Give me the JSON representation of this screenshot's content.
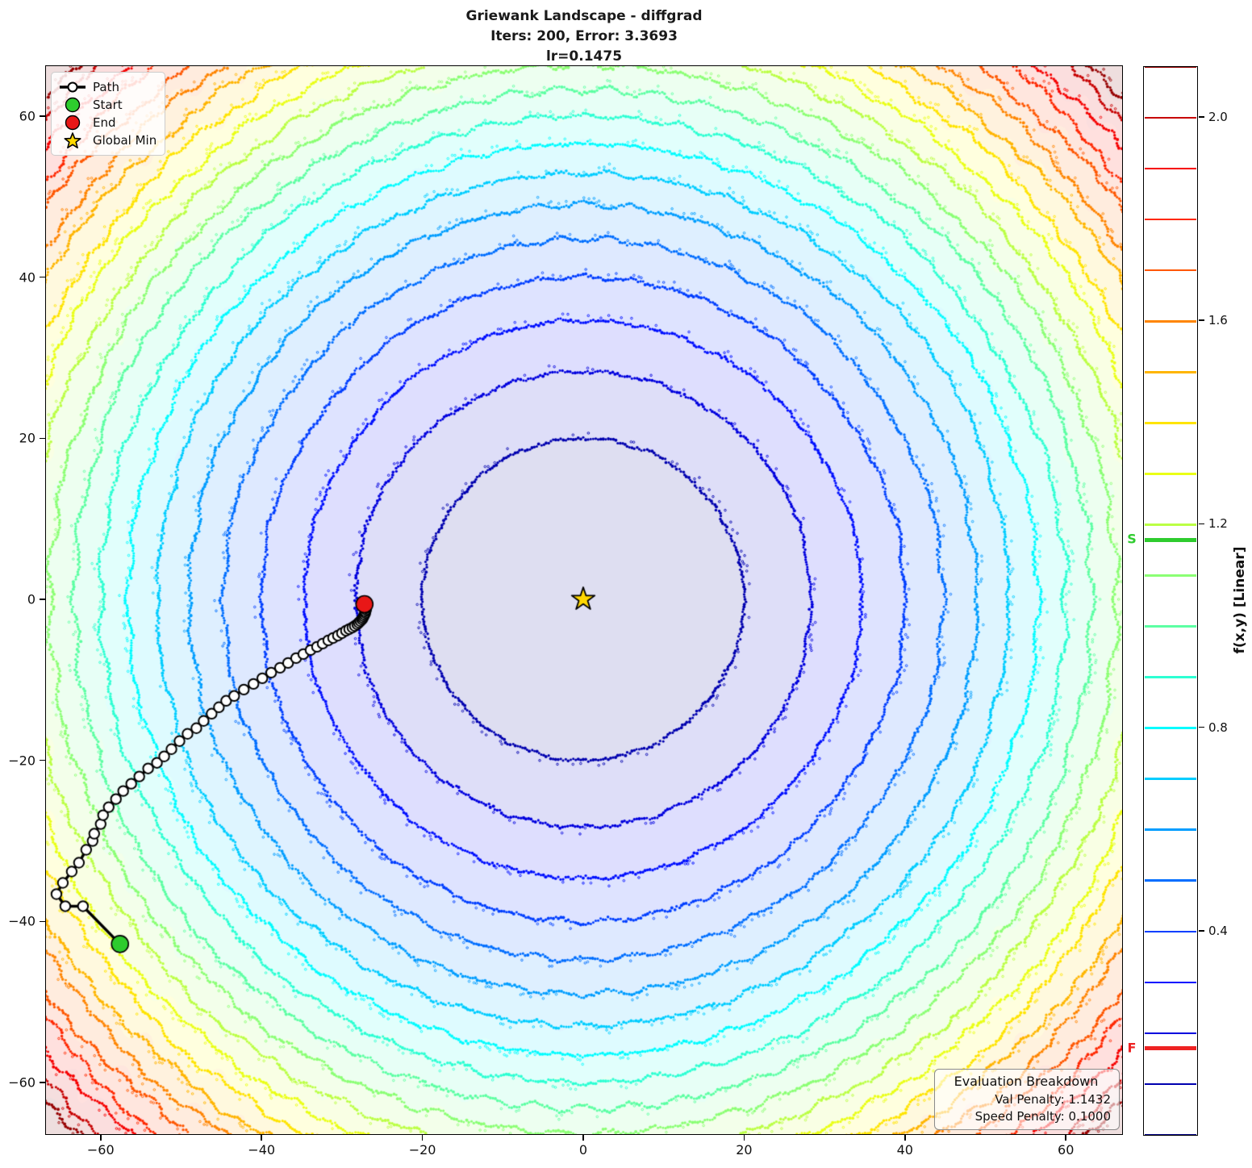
{
  "title": {
    "line1": "Griewank Landscape - diffgrad",
    "line2": "Iters: 200, Error: 3.3693",
    "line3": "lr=0.1475"
  },
  "legend": {
    "path_label": "Path",
    "start_label": "Start",
    "end_label": "End",
    "global_min_label": "Global Min",
    "path_color": "#000000",
    "path_marker_fill": "#ffffff",
    "start_color": "#2ecc2e",
    "end_color": "#e81717",
    "global_min_color": "#ffd700"
  },
  "eval_box": {
    "title": "Evaluation Breakdown",
    "val_penalty": "Val Penalty: 1.1432",
    "speed_penalty": "Speed Penalty: 0.1000"
  },
  "axes": {
    "xlim": [
      -66.8,
      67.0
    ],
    "ylim": [
      -66.4,
      66.2
    ],
    "xticks": [
      -60,
      -40,
      -20,
      0,
      20,
      40,
      60
    ],
    "yticks": [
      -60,
      -40,
      -20,
      0,
      20,
      40,
      60
    ]
  },
  "colorbar": {
    "label": "f(x,y) [Linear]",
    "vmin": 0.0,
    "vmax": 2.1,
    "ticks": [
      0.4,
      0.8,
      1.2,
      1.6,
      2.0
    ],
    "levels": [
      0.0,
      0.1,
      0.2,
      0.3,
      0.4,
      0.5,
      0.6,
      0.7,
      0.8,
      0.9,
      1.0,
      1.1,
      1.2,
      1.3,
      1.4,
      1.5,
      1.6,
      1.7,
      1.8,
      1.9,
      2.0,
      2.1
    ],
    "start_marker": {
      "label": "S",
      "value": 1.17,
      "color": "#2ecc2e"
    },
    "final_marker": {
      "label": "F",
      "value": 0.17,
      "color": "#ee2222"
    }
  },
  "chart_data": {
    "type": "contour",
    "title": "Griewank Landscape - diffgrad",
    "optimizer": "diffgrad",
    "iters": 200,
    "error": 3.3693,
    "lr": 0.1475,
    "colormap": "jet",
    "xlabel_ticks": [
      -60,
      -40,
      -20,
      0,
      20,
      40,
      60
    ],
    "ylabel_ticks": [
      -60,
      -40,
      -20,
      0,
      20,
      40,
      60
    ],
    "contour_levels": [
      0.1,
      0.2,
      0.3,
      0.4,
      0.5,
      0.6,
      0.7,
      0.8,
      0.9,
      1.0,
      1.1,
      1.2,
      1.3,
      1.4,
      1.5,
      1.6,
      1.7,
      1.8,
      1.9,
      2.0,
      2.1
    ],
    "level_vmax": 2.15,
    "global_min": [
      0,
      0
    ],
    "start": [
      -57.6,
      -42.8
    ],
    "end": [
      -27.2,
      -0.6
    ],
    "path": [
      [
        -57.6,
        -42.8
      ],
      [
        -62.2,
        -38.1
      ],
      [
        -64.4,
        -38.1
      ],
      [
        -65.5,
        -36.6
      ],
      [
        -64.7,
        -35.2
      ],
      [
        -63.6,
        -33.8
      ],
      [
        -62.7,
        -32.7
      ],
      [
        -61.8,
        -31.1
      ],
      [
        -61.0,
        -30.0
      ],
      [
        -60.8,
        -29.1
      ],
      [
        -60.0,
        -27.9
      ],
      [
        -59.7,
        -26.8
      ],
      [
        -59.0,
        -25.8
      ],
      [
        -58.1,
        -24.8
      ],
      [
        -57.2,
        -23.8
      ],
      [
        -56.2,
        -22.9
      ],
      [
        -55.2,
        -22.0
      ],
      [
        -54.1,
        -21.0
      ],
      [
        -53.0,
        -20.3
      ],
      [
        -52.1,
        -19.5
      ],
      [
        -51.2,
        -18.6
      ],
      [
        -50.2,
        -17.6
      ],
      [
        -49.2,
        -16.7
      ],
      [
        -48.1,
        -16.0
      ],
      [
        -47.2,
        -15.1
      ],
      [
        -46.2,
        -14.2
      ],
      [
        -45.3,
        -13.4
      ],
      [
        -44.4,
        -12.6
      ],
      [
        -43.4,
        -12.0
      ],
      [
        -42.2,
        -11.2
      ],
      [
        -41.0,
        -10.5
      ],
      [
        -39.9,
        -9.8
      ],
      [
        -38.8,
        -9.1
      ],
      [
        -37.7,
        -8.5
      ],
      [
        -36.7,
        -7.9
      ],
      [
        -35.7,
        -7.3
      ],
      [
        -34.8,
        -6.8
      ],
      [
        -33.9,
        -6.3
      ],
      [
        -33.1,
        -5.9
      ],
      [
        -32.4,
        -5.5
      ],
      [
        -31.7,
        -5.1
      ],
      [
        -31.1,
        -4.8
      ],
      [
        -30.5,
        -4.5
      ],
      [
        -30.0,
        -4.2
      ],
      [
        -29.5,
        -3.9
      ],
      [
        -29.1,
        -3.7
      ],
      [
        -28.7,
        -3.5
      ],
      [
        -28.4,
        -3.3
      ],
      [
        -28.1,
        -3.1
      ],
      [
        -27.9,
        -2.9
      ],
      [
        -27.7,
        -2.7
      ],
      [
        -27.5,
        -2.5
      ],
      [
        -27.4,
        -2.3
      ],
      [
        -27.3,
        -2.1
      ],
      [
        -27.2,
        -1.9
      ],
      [
        -27.1,
        -1.7
      ],
      [
        -27.1,
        -1.5
      ],
      [
        -27.0,
        -1.3
      ],
      [
        -27.0,
        -1.1
      ],
      [
        -27.2,
        -0.6
      ]
    ]
  }
}
